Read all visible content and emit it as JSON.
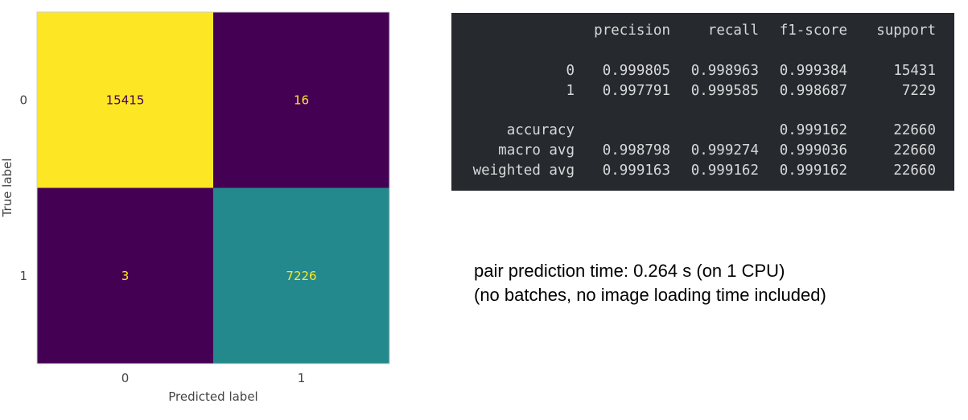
{
  "chart_data": {
    "type": "heatmap",
    "title": "",
    "xlabel": "Predicted label",
    "ylabel": "True label",
    "x_categories": [
      "0",
      "1"
    ],
    "y_categories": [
      "0",
      "1"
    ],
    "values": [
      [
        15415,
        16
      ],
      [
        3,
        7226
      ]
    ],
    "colormap": "viridis",
    "colors": {
      "high": "#fde725",
      "mid": "#21918c",
      "low": "#440154",
      "text_on_high": "#440154",
      "text_on_low": "#fde725"
    }
  },
  "report": {
    "headers": [
      "precision",
      "recall",
      "f1-score",
      "support"
    ],
    "rows": [
      {
        "label": "0",
        "precision": "0.999805",
        "recall": "0.998963",
        "f1": "0.999384",
        "support": "15431"
      },
      {
        "label": "1",
        "precision": "0.997791",
        "recall": "0.999585",
        "f1": "0.998687",
        "support": "7229"
      },
      {
        "label": "accuracy",
        "precision": "",
        "recall": "",
        "f1": "0.999162",
        "support": "22660"
      },
      {
        "label": "macro avg",
        "precision": "0.998798",
        "recall": "0.999274",
        "f1": "0.999036",
        "support": "22660"
      },
      {
        "label": "weighted avg",
        "precision": "0.999163",
        "recall": "0.999162",
        "f1": "0.999162",
        "support": "22660"
      }
    ],
    "background": "#262a2f",
    "text_color": "#d8d8d8"
  },
  "timing": {
    "line1": "pair prediction time: 0.264 s (on 1 CPU)",
    "line2": "(no batches, no image loading time included)"
  }
}
